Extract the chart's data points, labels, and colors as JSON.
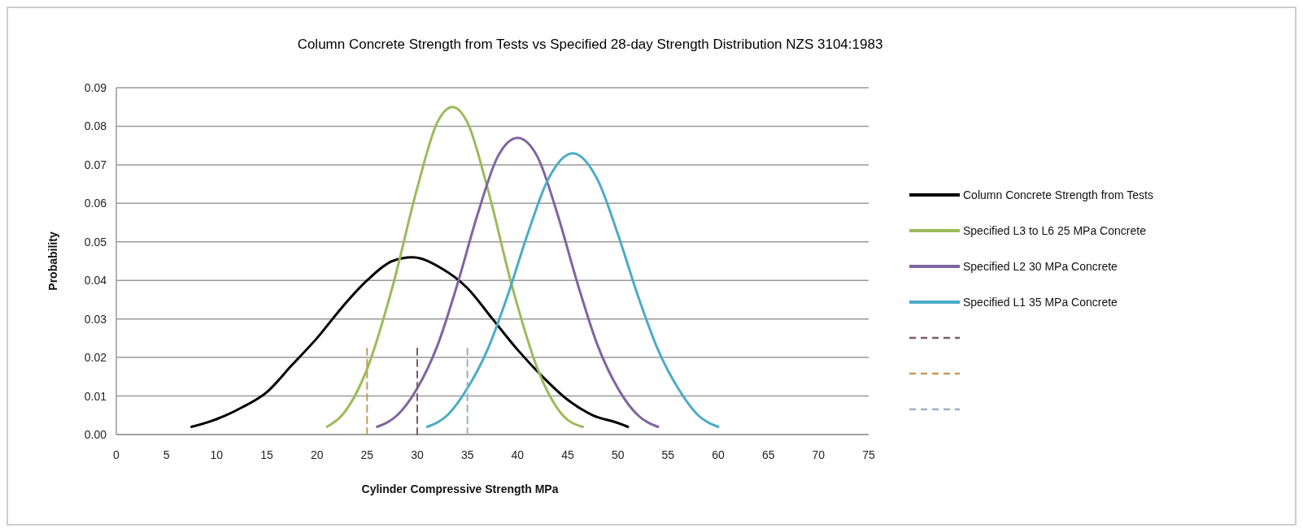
{
  "chart_data": {
    "type": "line",
    "title": "Column Concrete Strength from Tests  vs Specified  28-day Strength Distribution NZS 3104:1983",
    "xlabel": "Cylinder Compressive  Strength MPa",
    "ylabel": "Probability",
    "xlim": [
      0,
      75
    ],
    "xticks": [
      0,
      5,
      10,
      15,
      20,
      25,
      30,
      35,
      40,
      45,
      50,
      55,
      60,
      65,
      70,
      75
    ],
    "ylim": [
      0,
      0.09
    ],
    "yticks": [
      {
        "value": 0,
        "label": "0.00"
      },
      {
        "value": 0.01,
        "label": "0.01"
      },
      {
        "value": 0.02,
        "label": "0.02"
      },
      {
        "value": 0.03,
        "label": "0.03"
      },
      {
        "value": 0.04,
        "label": "0.04"
      },
      {
        "value": 0.05,
        "label": "0.05"
      },
      {
        "value": 0.06,
        "label": "0.06"
      },
      {
        "value": 0.07,
        "label": "0.07"
      },
      {
        "value": 0.08,
        "label": "0.08"
      },
      {
        "value": 0.09,
        "label": "0.09"
      }
    ],
    "grid": "y",
    "legend": "right",
    "line_style": "solid",
    "marker": "none",
    "series": [
      {
        "name": "Column Concrete Strength  from Tests",
        "color": "#000000",
        "x": [
          7.5,
          10,
          12.5,
          15,
          17.5,
          20,
          22.5,
          25,
          27.5,
          29.5,
          32.5,
          35,
          37.5,
          40,
          42.5,
          45,
          47.5,
          50,
          51
        ],
        "values": [
          0.002,
          0.004,
          0.007,
          0.011,
          0.018,
          0.025,
          0.033,
          0.04,
          0.045,
          0.046,
          0.043,
          0.038,
          0.03,
          0.022,
          0.015,
          0.009,
          0.005,
          0.003,
          0.002
        ]
      },
      {
        "name": "Specified L3 to L6 25 MPa Concrete",
        "color": "#9bbb59",
        "x": [
          21,
          22.5,
          25,
          27.5,
          30,
          32,
          33.5,
          35,
          37,
          39.5,
          42,
          44.5,
          46.5
        ],
        "values": [
          0.002,
          0.005,
          0.017,
          0.038,
          0.064,
          0.081,
          0.085,
          0.081,
          0.064,
          0.038,
          0.017,
          0.005,
          0.002
        ]
      },
      {
        "name": "Specified L2 30 MPa Concrete",
        "color": "#8064a2",
        "x": [
          26,
          28,
          30,
          32,
          34,
          36,
          38,
          40,
          42,
          44,
          46,
          48,
          50,
          52,
          54
        ],
        "values": [
          0.002,
          0.005,
          0.012,
          0.023,
          0.039,
          0.057,
          0.072,
          0.077,
          0.072,
          0.057,
          0.039,
          0.023,
          0.012,
          0.005,
          0.002
        ]
      },
      {
        "name": "Specified L1 35 MPa Concrete",
        "color": "#4bacc6",
        "x": [
          31,
          33,
          35,
          37,
          39,
          41,
          43,
          45.5,
          48,
          50,
          52,
          54,
          56,
          58,
          60
        ],
        "values": [
          0.002,
          0.005,
          0.012,
          0.022,
          0.036,
          0.052,
          0.066,
          0.073,
          0.066,
          0.052,
          0.036,
          0.022,
          0.012,
          0.005,
          0.002
        ]
      },
      {
        "color": "#7a5a70",
        "x": [
          30,
          30
        ],
        "values": [
          0,
          0.023
        ],
        "line_style": "dashed"
      },
      {
        "color": "#c89a5a",
        "x": [
          25,
          25
        ],
        "values": [
          0,
          0.023
        ],
        "line_style": "dashed"
      },
      {
        "color": "#9ab0c8",
        "x": [
          35,
          35
        ],
        "values": [
          0,
          0.023
        ],
        "line_style": "dashed"
      }
    ]
  }
}
